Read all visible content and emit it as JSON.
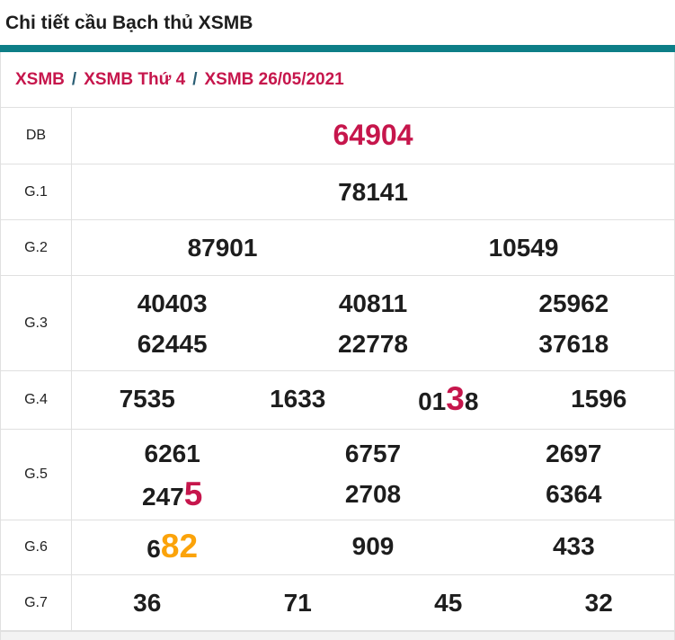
{
  "page": {
    "title": "Chi tiết cầu Bạch thủ XSMB"
  },
  "breadcrumb": {
    "separator": "/",
    "items": [
      {
        "label": "XSMB"
      },
      {
        "label": "XSMB Thứ 4"
      },
      {
        "label": "XSMB 26/05/2021"
      }
    ]
  },
  "colors": {
    "accent_teal": "#0d7e87",
    "crimson": "#c6164c",
    "orange": "#fba30a",
    "text_dark": "#1d1d1d",
    "border": "#e0e0e0",
    "footer_bg": "#f3f3f3"
  },
  "results_table": {
    "rows": [
      {
        "label": "DB",
        "height_class": "row-h63",
        "lines": [
          [
            [
              {
                "t": "64904",
                "s": "db"
              }
            ]
          ]
        ]
      },
      {
        "label": "G.1",
        "height_class": "row-h62",
        "lines": [
          [
            [
              {
                "t": "78141",
                "s": "normal"
              }
            ]
          ]
        ]
      },
      {
        "label": "G.2",
        "height_class": "row-h62",
        "lines": [
          [
            [
              {
                "t": "87901",
                "s": "normal"
              }
            ],
            [
              {
                "t": "10549",
                "s": "normal"
              }
            ]
          ]
        ]
      },
      {
        "label": "G.3",
        "height_class": "row-h106",
        "lines": [
          [
            [
              {
                "t": "40403",
                "s": "normal"
              }
            ],
            [
              {
                "t": "40811",
                "s": "normal"
              }
            ],
            [
              {
                "t": "25962",
                "s": "normal"
              }
            ]
          ],
          [
            [
              {
                "t": "62445",
                "s": "normal"
              }
            ],
            [
              {
                "t": "22778",
                "s": "normal"
              }
            ],
            [
              {
                "t": "37618",
                "s": "normal"
              }
            ]
          ]
        ]
      },
      {
        "label": "G.4",
        "height_class": "row-h65",
        "lines": [
          [
            [
              {
                "t": "7535",
                "s": "normal"
              }
            ],
            [
              {
                "t": "1633",
                "s": "normal"
              }
            ],
            [
              {
                "t": "01",
                "s": "normal"
              },
              {
                "t": "3",
                "s": "red"
              },
              {
                "t": "8",
                "s": "normal"
              }
            ],
            [
              {
                "t": "1596",
                "s": "normal"
              }
            ]
          ]
        ]
      },
      {
        "label": "G.5",
        "height_class": "row-h101",
        "lines": [
          [
            [
              {
                "t": "6261",
                "s": "normal"
              }
            ],
            [
              {
                "t": "6757",
                "s": "normal"
              }
            ],
            [
              {
                "t": "2697",
                "s": "normal"
              }
            ]
          ],
          [
            [
              {
                "t": "247",
                "s": "normal"
              },
              {
                "t": "5",
                "s": "red"
              }
            ],
            [
              {
                "t": "2708",
                "s": "normal"
              }
            ],
            [
              {
                "t": "6364",
                "s": "normal"
              }
            ]
          ]
        ]
      },
      {
        "label": "G.6",
        "height_class": "row-h61",
        "lines": [
          [
            [
              {
                "t": "6",
                "s": "normal"
              },
              {
                "t": "82",
                "s": "orange"
              }
            ],
            [
              {
                "t": "909",
                "s": "normal"
              }
            ],
            [
              {
                "t": "433",
                "s": "normal"
              }
            ]
          ]
        ]
      },
      {
        "label": "G.7",
        "height_class": "row-h62",
        "lines": [
          [
            [
              {
                "t": "36",
                "s": "normal"
              }
            ],
            [
              {
                "t": "71",
                "s": "normal"
              }
            ],
            [
              {
                "t": "45",
                "s": "normal"
              }
            ],
            [
              {
                "t": "32",
                "s": "normal"
              }
            ]
          ]
        ]
      }
    ]
  }
}
